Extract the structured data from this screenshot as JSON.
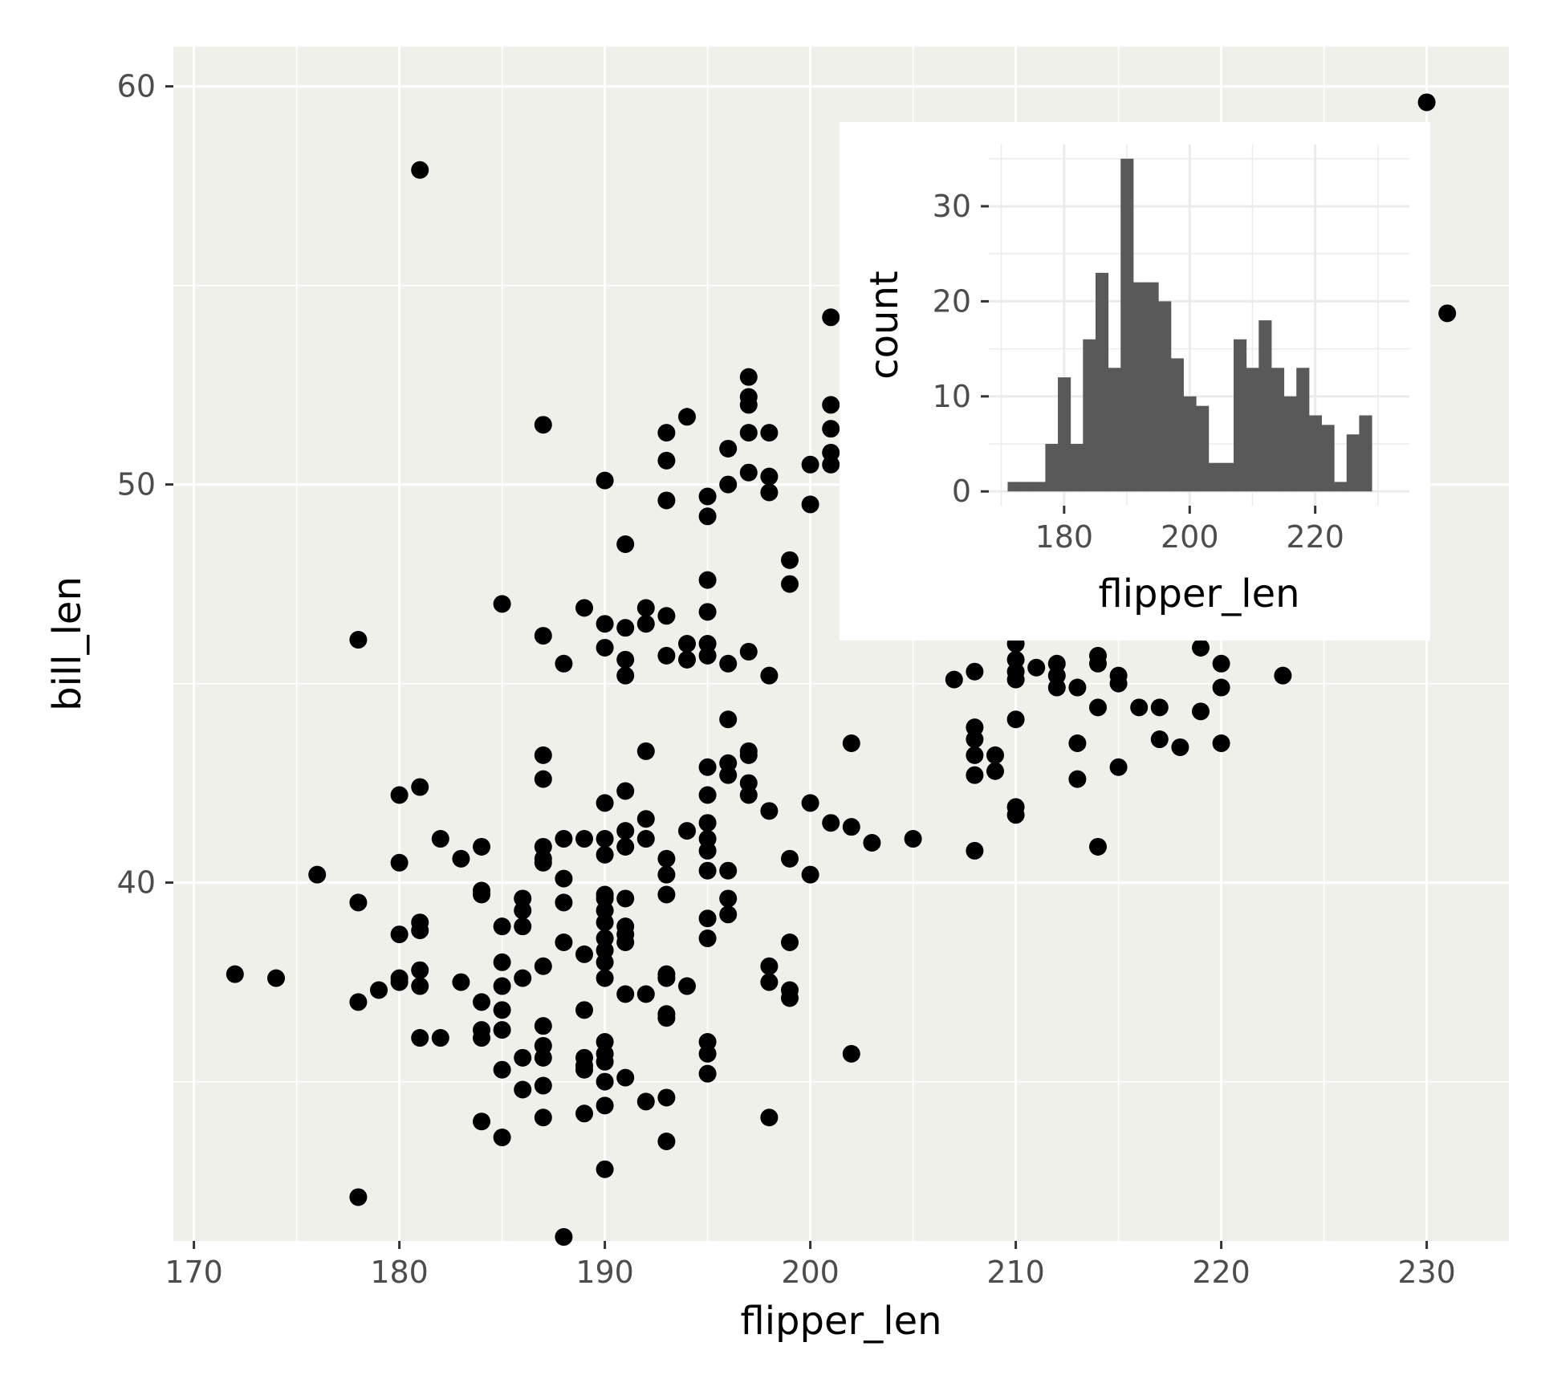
{
  "chart_data": [
    {
      "type": "scatter",
      "xlabel": "flipper_len",
      "ylabel": "bill_len",
      "xlim": [
        169,
        234
      ],
      "ylim": [
        31,
        61
      ],
      "x_ticks": [
        170,
        180,
        190,
        200,
        210,
        220,
        230
      ],
      "y_ticks": [
        40,
        50,
        60
      ],
      "grid": true,
      "background": "#f0f0eb",
      "point_color": "#000000",
      "points": [
        [
          172,
          37.7
        ],
        [
          174,
          37.6
        ],
        [
          176,
          40.2
        ],
        [
          178,
          39.5
        ],
        [
          178,
          37.0
        ],
        [
          178,
          46.1
        ],
        [
          178,
          32.1
        ],
        [
          179,
          37.3
        ],
        [
          180,
          42.2
        ],
        [
          180,
          40.5
        ],
        [
          180,
          38.7
        ],
        [
          180,
          37.6
        ],
        [
          180,
          37.5
        ],
        [
          181,
          42.4
        ],
        [
          181,
          39.0
        ],
        [
          181,
          38.8
        ],
        [
          181,
          37.8
        ],
        [
          181,
          37.4
        ],
        [
          181,
          36.1
        ],
        [
          181,
          57.9
        ],
        [
          182,
          41.1
        ],
        [
          182,
          36.1
        ],
        [
          183,
          40.6
        ],
        [
          183,
          37.5
        ],
        [
          184,
          40.9
        ],
        [
          184,
          39.8
        ],
        [
          184,
          39.7
        ],
        [
          184,
          37.0
        ],
        [
          184,
          36.3
        ],
        [
          184,
          36.1
        ],
        [
          184,
          34.0
        ],
        [
          185,
          47.0
        ],
        [
          185,
          38.9
        ],
        [
          185,
          38.0
        ],
        [
          185,
          37.4
        ],
        [
          185,
          36.8
        ],
        [
          185,
          36.3
        ],
        [
          185,
          35.3
        ],
        [
          185,
          33.6
        ],
        [
          186,
          39.6
        ],
        [
          186,
          39.3
        ],
        [
          186,
          38.9
        ],
        [
          186,
          37.6
        ],
        [
          186,
          35.6
        ],
        [
          186,
          34.8
        ],
        [
          187,
          51.5
        ],
        [
          187,
          46.2
        ],
        [
          187,
          43.2
        ],
        [
          187,
          42.6
        ],
        [
          187,
          40.9
        ],
        [
          187,
          40.6
        ],
        [
          187,
          40.5
        ],
        [
          187,
          37.9
        ],
        [
          187,
          36.4
        ],
        [
          187,
          35.9
        ],
        [
          187,
          35.6
        ],
        [
          187,
          34.9
        ],
        [
          187,
          34.1
        ],
        [
          188,
          45.5
        ],
        [
          188,
          41.1
        ],
        [
          188,
          40.1
        ],
        [
          188,
          39.5
        ],
        [
          188,
          38.5
        ],
        [
          188,
          31.1
        ],
        [
          189,
          46.9
        ],
        [
          189,
          41.1
        ],
        [
          189,
          38.2
        ],
        [
          189,
          36.8
        ],
        [
          189,
          35.6
        ],
        [
          189,
          35.4
        ],
        [
          189,
          35.3
        ],
        [
          189,
          34.2
        ],
        [
          190,
          50.1
        ],
        [
          190,
          46.5
        ],
        [
          190,
          45.9
        ],
        [
          190,
          42.0
        ],
        [
          190,
          41.1
        ],
        [
          190,
          40.7
        ],
        [
          190,
          39.7
        ],
        [
          190,
          39.6
        ],
        [
          190,
          39.3
        ],
        [
          190,
          39.0
        ],
        [
          190,
          38.6
        ],
        [
          190,
          38.3
        ],
        [
          190,
          38.0
        ],
        [
          190,
          37.6
        ],
        [
          190,
          36.0
        ],
        [
          190,
          35.7
        ],
        [
          190,
          35.5
        ],
        [
          190,
          35.0
        ],
        [
          190,
          34.4
        ],
        [
          190,
          32.8
        ],
        [
          191,
          48.5
        ],
        [
          191,
          46.4
        ],
        [
          191,
          45.6
        ],
        [
          191,
          45.2
        ],
        [
          191,
          42.3
        ],
        [
          191,
          41.3
        ],
        [
          191,
          40.9
        ],
        [
          191,
          39.6
        ],
        [
          191,
          38.9
        ],
        [
          191,
          38.7
        ],
        [
          191,
          38.5
        ],
        [
          191,
          37.2
        ],
        [
          191,
          35.1
        ],
        [
          192,
          46.9
        ],
        [
          192,
          46.5
        ],
        [
          192,
          43.3
        ],
        [
          192,
          41.6
        ],
        [
          192,
          41.1
        ],
        [
          192,
          37.2
        ],
        [
          192,
          34.5
        ],
        [
          193,
          51.3
        ],
        [
          193,
          50.6
        ],
        [
          193,
          49.6
        ],
        [
          193,
          46.7
        ],
        [
          193,
          45.7
        ],
        [
          193,
          40.6
        ],
        [
          193,
          40.2
        ],
        [
          193,
          39.7
        ],
        [
          193,
          37.7
        ],
        [
          193,
          37.6
        ],
        [
          193,
          36.7
        ],
        [
          193,
          36.6
        ],
        [
          193,
          34.6
        ],
        [
          193,
          33.5
        ],
        [
          194,
          51.7
        ],
        [
          194,
          46.0
        ],
        [
          194,
          45.6
        ],
        [
          194,
          41.3
        ],
        [
          194,
          37.4
        ],
        [
          195,
          49.7
        ],
        [
          195,
          49.2
        ],
        [
          195,
          47.6
        ],
        [
          195,
          46.8
        ],
        [
          195,
          46.0
        ],
        [
          195,
          45.7
        ],
        [
          195,
          42.9
        ],
        [
          195,
          42.2
        ],
        [
          195,
          41.5
        ],
        [
          195,
          41.1
        ],
        [
          195,
          40.8
        ],
        [
          195,
          40.3
        ],
        [
          195,
          39.1
        ],
        [
          195,
          38.6
        ],
        [
          195,
          36.0
        ],
        [
          195,
          35.7
        ],
        [
          195,
          35.2
        ],
        [
          196,
          50.9
        ],
        [
          196,
          50.0
        ],
        [
          196,
          45.5
        ],
        [
          196,
          44.1
        ],
        [
          196,
          43.0
        ],
        [
          196,
          42.7
        ],
        [
          196,
          40.3
        ],
        [
          196,
          39.6
        ],
        [
          196,
          39.2
        ],
        [
          197,
          52.7
        ],
        [
          197,
          52.2
        ],
        [
          197,
          52.0
        ],
        [
          197,
          51.3
        ],
        [
          197,
          50.3
        ],
        [
          197,
          45.8
        ],
        [
          197,
          43.3
        ],
        [
          197,
          43.2
        ],
        [
          197,
          42.5
        ],
        [
          197,
          42.2
        ],
        [
          198,
          51.3
        ],
        [
          198,
          50.2
        ],
        [
          198,
          49.8
        ],
        [
          198,
          45.2
        ],
        [
          198,
          41.8
        ],
        [
          198,
          37.9
        ],
        [
          198,
          37.5
        ],
        [
          198,
          34.1
        ],
        [
          199,
          48.1
        ],
        [
          199,
          47.5
        ],
        [
          199,
          40.6
        ],
        [
          199,
          38.5
        ],
        [
          199,
          37.3
        ],
        [
          199,
          37.1
        ],
        [
          200,
          50.5
        ],
        [
          200,
          49.5
        ],
        [
          200,
          42.0
        ],
        [
          200,
          40.2
        ],
        [
          201,
          54.2
        ],
        [
          201,
          52.0
        ],
        [
          201,
          51.4
        ],
        [
          201,
          50.8
        ],
        [
          201,
          50.5
        ],
        [
          201,
          41.5
        ],
        [
          202,
          43.5
        ],
        [
          202,
          41.4
        ],
        [
          202,
          35.7
        ],
        [
          203,
          41.0
        ],
        [
          205,
          41.1
        ],
        [
          207,
          45.1
        ],
        [
          208,
          45.3
        ],
        [
          208,
          43.9
        ],
        [
          208,
          43.6
        ],
        [
          208,
          43.2
        ],
        [
          208,
          42.7
        ],
        [
          208,
          40.8
        ],
        [
          209,
          43.2
        ],
        [
          209,
          42.8
        ],
        [
          210,
          46.0
        ],
        [
          210,
          45.6
        ],
        [
          210,
          45.3
        ],
        [
          210,
          45.1
        ],
        [
          210,
          44.1
        ],
        [
          210,
          41.9
        ],
        [
          210,
          41.7
        ],
        [
          211,
          45.4
        ],
        [
          212,
          45.5
        ],
        [
          212,
          45.2
        ],
        [
          212,
          44.9
        ],
        [
          213,
          44.9
        ],
        [
          213,
          43.5
        ],
        [
          213,
          42.6
        ],
        [
          214,
          45.7
        ],
        [
          214,
          45.5
        ],
        [
          214,
          44.4
        ],
        [
          214,
          40.9
        ],
        [
          215,
          45.2
        ],
        [
          215,
          45.0
        ],
        [
          215,
          42.9
        ],
        [
          216,
          44.4
        ],
        [
          217,
          44.4
        ],
        [
          217,
          43.6
        ],
        [
          218,
          43.4
        ],
        [
          219,
          45.9
        ],
        [
          219,
          44.3
        ],
        [
          220,
          45.5
        ],
        [
          220,
          44.9
        ],
        [
          220,
          43.5
        ],
        [
          223,
          45.2
        ],
        [
          230,
          59.6
        ],
        [
          231,
          54.3
        ]
      ]
    },
    {
      "type": "bar",
      "subtype": "histogram",
      "xlabel": "flipper_len",
      "ylabel": "count",
      "xlim": [
        168,
        235
      ],
      "ylim": [
        -1.5,
        36.5
      ],
      "x_ticks": [
        180,
        200,
        220
      ],
      "y_ticks": [
        0,
        10,
        20,
        30
      ],
      "grid": true,
      "background": "#ffffff",
      "bar_color": "#595959",
      "bin_start": 171,
      "bin_width": 2,
      "counts": [
        1,
        1,
        1,
        5,
        12,
        5,
        16,
        23,
        13,
        35,
        22,
        22,
        20,
        14,
        10,
        9,
        3,
        3,
        16,
        13,
        18,
        13,
        10,
        13,
        8,
        7,
        1,
        6,
        8
      ],
      "bin_range_note": ""
    }
  ]
}
